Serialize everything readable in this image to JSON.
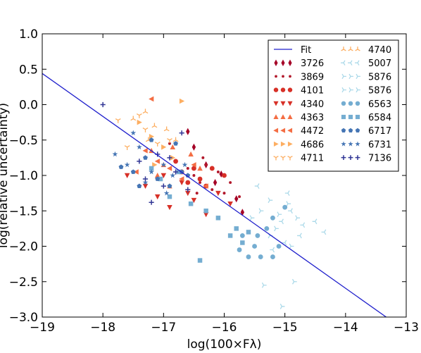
{
  "chart_data": {
    "type": "scatter",
    "title": "",
    "xlabel": "log(100×Fλ)",
    "ylabel": "log(relative uncertainty)",
    "xlim": [
      -19,
      -13
    ],
    "ylim": [
      -3.0,
      1.0
    ],
    "xticks": [
      -19,
      -18,
      -17,
      -16,
      -15,
      -14,
      -13
    ],
    "xtick_labels": [
      "−19",
      "−18",
      "−17",
      "−16",
      "−15",
      "−14",
      "−13"
    ],
    "yticks": [
      1.0,
      0.5,
      0.0,
      -0.5,
      -1.0,
      -1.5,
      -2.0,
      -2.5,
      -3.0
    ],
    "ytick_labels": [
      "1.0",
      "0.5",
      "0.0",
      "−0.5",
      "−1.0",
      "−1.5",
      "−2.0",
      "−2.5",
      "−3.0"
    ],
    "grid": false,
    "legend_position": "top-right",
    "fit": {
      "label": "Fit",
      "color": "#1f1fcc",
      "x": [
        -19.0,
        -13.33
      ],
      "y": [
        0.44,
        -3.0
      ]
    },
    "series": [
      {
        "name": "3726",
        "marker": "thin-diamond",
        "color": "#a50026",
        "points": [
          [
            -16.6,
            -0.38
          ],
          [
            -16.5,
            -0.6
          ],
          [
            -16.3,
            -0.85
          ],
          [
            -16.15,
            -1.1
          ],
          [
            -16.05,
            -0.98
          ],
          [
            -15.8,
            -1.33
          ],
          [
            -15.7,
            -1.52
          ]
        ]
      },
      {
        "name": "3869",
        "marker": "point",
        "color": "#b2182b",
        "points": [
          [
            -16.9,
            -0.55
          ],
          [
            -16.6,
            -0.9
          ],
          [
            -16.5,
            -1.0
          ],
          [
            -16.4,
            -1.1
          ],
          [
            -16.3,
            -0.85
          ],
          [
            -16.2,
            -1.2
          ],
          [
            -16.1,
            -0.95
          ],
          [
            -16.0,
            -1.25
          ],
          [
            -15.9,
            -1.1
          ],
          [
            -15.75,
            -1.3
          ],
          [
            -16.45,
            -1.25
          ],
          [
            -16.35,
            -0.75
          ]
        ]
      },
      {
        "name": "4101",
        "marker": "circle",
        "color": "#d73027",
        "points": [
          [
            -16.8,
            -0.8
          ],
          [
            -16.7,
            -0.95
          ],
          [
            -16.5,
            -0.9
          ],
          [
            -16.4,
            -1.05
          ],
          [
            -16.2,
            -0.9
          ],
          [
            -16.0,
            -1.0
          ],
          [
            -16.6,
            -1.1
          ],
          [
            -16.3,
            -1.15
          ]
        ]
      },
      {
        "name": "4340",
        "marker": "triangle-down",
        "color": "#d73027",
        "points": [
          [
            -17.6,
            -1.0
          ],
          [
            -17.3,
            -1.15
          ],
          [
            -17.1,
            -1.3
          ],
          [
            -16.9,
            -1.45
          ],
          [
            -16.7,
            -1.1
          ],
          [
            -16.5,
            -1.35
          ],
          [
            -16.3,
            -1.55
          ],
          [
            -16.1,
            -1.25
          ],
          [
            -15.9,
            -1.4
          ],
          [
            -16.6,
            -1.25
          ],
          [
            -17.0,
            -1.0
          ]
        ]
      },
      {
        "name": "4363",
        "marker": "triangle-up",
        "color": "#f46d43",
        "points": [
          [
            -17.2,
            -0.65
          ],
          [
            -17.0,
            -0.85
          ],
          [
            -16.85,
            -0.6
          ],
          [
            -16.7,
            -0.95
          ],
          [
            -16.55,
            -0.7
          ],
          [
            -16.4,
            -0.9
          ],
          [
            -17.1,
            -1.0
          ],
          [
            -16.9,
            -1.15
          ]
        ]
      },
      {
        "name": "4472",
        "marker": "triangle-left",
        "color": "#f46d43",
        "points": [
          [
            -17.2,
            0.08
          ],
          [
            -17.3,
            -0.65
          ],
          [
            -17.1,
            -0.8
          ],
          [
            -16.9,
            -0.9
          ],
          [
            -16.7,
            -1.05
          ],
          [
            -16.5,
            -0.85
          ],
          [
            -16.3,
            -1.15
          ],
          [
            -17.45,
            -0.95
          ]
        ]
      },
      {
        "name": "4686",
        "marker": "triangle-right",
        "color": "#fdae61",
        "points": [
          [
            -16.7,
            0.05
          ],
          [
            -17.4,
            -0.25
          ],
          [
            -17.2,
            -0.45
          ],
          [
            -17.0,
            -0.6
          ],
          [
            -16.85,
            -0.75
          ],
          [
            -17.15,
            -0.85
          ]
        ]
      },
      {
        "name": "4711",
        "marker": "tri-down",
        "color": "#fdae61",
        "points": [
          [
            -17.75,
            -0.22
          ],
          [
            -17.6,
            -0.6
          ],
          [
            -17.4,
            -0.15
          ],
          [
            -17.3,
            -0.35
          ],
          [
            -17.1,
            -0.55
          ],
          [
            -16.9,
            -0.5
          ]
        ]
      },
      {
        "name": "4740",
        "marker": "tri-up",
        "color": "#fdae61",
        "points": [
          [
            -17.5,
            -0.2
          ],
          [
            -17.3,
            -0.1
          ],
          [
            -17.15,
            -0.3
          ],
          [
            -16.95,
            -0.35
          ],
          [
            -16.8,
            -0.5
          ],
          [
            -17.25,
            -0.5
          ]
        ]
      },
      {
        "name": "5007",
        "marker": "tri-left",
        "color": "#abd9e9",
        "points": [
          [
            -15.05,
            -1.65
          ],
          [
            -14.9,
            -1.5
          ],
          [
            -14.7,
            -1.7
          ],
          [
            -14.5,
            -1.65
          ],
          [
            -14.35,
            -1.8
          ],
          [
            -15.0,
            -1.95
          ],
          [
            -15.2,
            -2.05
          ],
          [
            -14.95,
            -1.25
          ],
          [
            -15.45,
            -1.15
          ],
          [
            -14.75,
            -1.85
          ]
        ]
      },
      {
        "name": "5876",
        "marker": "tri-right",
        "color": "#abd9e9",
        "points": [
          [
            -15.25,
            -1.85
          ],
          [
            -15.1,
            -1.55
          ],
          [
            -14.9,
            -2.0
          ],
          [
            -14.85,
            -2.5
          ],
          [
            -15.05,
            -2.85
          ],
          [
            -15.35,
            -2.55
          ]
        ]
      },
      {
        "name": "5876",
        "marker": "tri-right",
        "color": "#abd9e9",
        "points": [
          [
            -15.4,
            -1.5
          ],
          [
            -15.15,
            -1.75
          ],
          [
            -14.95,
            -1.4
          ],
          [
            -14.8,
            -1.6
          ],
          [
            -15.55,
            -1.6
          ],
          [
            -15.25,
            -1.35
          ]
        ]
      },
      {
        "name": "6563",
        "marker": "circle",
        "color": "#74add1",
        "points": [
          [
            -15.3,
            -1.75
          ],
          [
            -15.1,
            -2.0
          ],
          [
            -15.2,
            -2.15
          ],
          [
            -15.4,
            -2.15
          ],
          [
            -15.5,
            -2.0
          ],
          [
            -15.6,
            -2.15
          ],
          [
            -15.7,
            -1.85
          ],
          [
            -15.45,
            -1.85
          ],
          [
            -15.75,
            -2.05
          ],
          [
            -15.2,
            -1.6
          ],
          [
            -15.0,
            -1.45
          ]
        ]
      },
      {
        "name": "6584",
        "marker": "square",
        "color": "#74add1",
        "points": [
          [
            -16.4,
            -2.2
          ],
          [
            -15.9,
            -1.85
          ],
          [
            -15.7,
            -1.95
          ],
          [
            -15.6,
            -1.8
          ],
          [
            -16.1,
            -1.6
          ],
          [
            -16.3,
            -1.5
          ],
          [
            -15.8,
            -1.75
          ],
          [
            -16.9,
            -1.3
          ],
          [
            -17.05,
            -1.05
          ],
          [
            -16.55,
            -1.4
          ],
          [
            -16.75,
            -0.95
          ],
          [
            -17.2,
            -0.9
          ]
        ]
      },
      {
        "name": "6717",
        "marker": "pentagon",
        "color": "#4575b4",
        "points": [
          [
            -17.7,
            -0.88
          ],
          [
            -17.5,
            -0.95
          ],
          [
            -17.3,
            -0.75
          ],
          [
            -17.1,
            -1.05
          ],
          [
            -16.9,
            -1.15
          ],
          [
            -16.7,
            -0.95
          ],
          [
            -17.4,
            -1.15
          ],
          [
            -16.8,
            -0.55
          ],
          [
            -17.2,
            -0.5
          ],
          [
            -16.6,
            -1.0
          ]
        ]
      },
      {
        "name": "6731",
        "marker": "star",
        "color": "#4575b4",
        "points": [
          [
            -17.8,
            -0.7
          ],
          [
            -17.6,
            -0.85
          ],
          [
            -17.4,
            -0.6
          ],
          [
            -17.2,
            -0.95
          ],
          [
            -17.0,
            -0.85
          ],
          [
            -16.85,
            -1.0
          ],
          [
            -16.65,
            -0.85
          ],
          [
            -17.3,
            -1.1
          ],
          [
            -16.95,
            -1.25
          ],
          [
            -17.5,
            -0.4
          ]
        ]
      },
      {
        "name": "7136",
        "marker": "plus",
        "color": "#313695",
        "points": [
          [
            -18.0,
            0.0
          ],
          [
            -17.2,
            -1.38
          ],
          [
            -17.0,
            -1.15
          ],
          [
            -16.8,
            -0.95
          ],
          [
            -16.6,
            -1.2
          ],
          [
            -17.4,
            -0.8
          ],
          [
            -17.1,
            -0.7
          ],
          [
            -16.9,
            -0.75
          ],
          [
            -16.7,
            -0.4
          ],
          [
            -17.3,
            -1.05
          ]
        ]
      }
    ]
  }
}
